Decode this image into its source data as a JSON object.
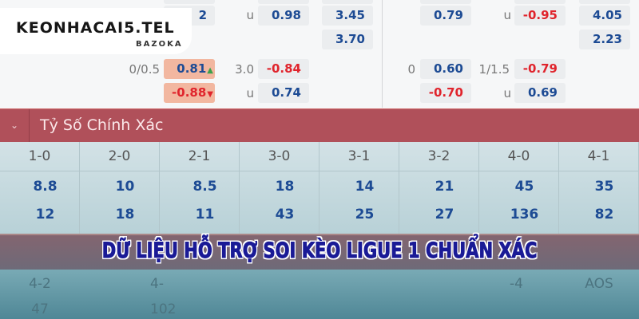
{
  "odds_top": {
    "row_a": {
      "left_home": "2",
      "left_ou_label": "u",
      "left_ou": "0.98",
      "left_1x2": "3.45",
      "right_ah": "0.79",
      "right_ou_label": "u",
      "right_ou": "-0.95",
      "right_1x2": "4.05"
    },
    "row_b": {
      "left_1x2": "3.70",
      "right_1x2": "2.23"
    },
    "row_c": {
      "left_hcp": "0/0.5",
      "left_ah": "0.81",
      "left_ah_trend": "▲",
      "left_line": "3.0",
      "left_ou": "-0.84",
      "right_hcp": "0",
      "right_ah": "0.60",
      "right_line": "1/1.5",
      "right_ou": "-0.79"
    },
    "row_d": {
      "left_ah": "-0.88",
      "left_ah_trend": "▼",
      "left_ou_label": "u",
      "left_ou": "0.74",
      "right_ah": "-0.70",
      "right_ou_label": "u",
      "right_ou": "0.69"
    }
  },
  "logo": {
    "main": "KEONHACAI5.TEL",
    "sub": "BAZOKA"
  },
  "section": {
    "title": "Tỷ Số Chính Xác",
    "toggle_icon": "chevron-down-icon",
    "color": "#b0505a"
  },
  "correct_score": [
    {
      "score": "1-0",
      "home": "8.8",
      "away": "12"
    },
    {
      "score": "2-0",
      "home": "10",
      "away": "18"
    },
    {
      "score": "2-1",
      "home": "8.5",
      "away": "11"
    },
    {
      "score": "3-0",
      "home": "18",
      "away": "43"
    },
    {
      "score": "3-1",
      "home": "14",
      "away": "25"
    },
    {
      "score": "3-2",
      "home": "21",
      "away": "27"
    },
    {
      "score": "4-0",
      "home": "45",
      "away": "136"
    },
    {
      "score": "4-1",
      "home": "35",
      "away": "82"
    }
  ],
  "faded_row": {
    "c1": "4-2",
    "c2": "4-",
    "c7": "-4",
    "c8": "AOS",
    "v1": "47",
    "v2": "102"
  },
  "banner": {
    "text": "DỮ LIỆU HỖ TRỢ SOI KÈO LIGUE 1 CHUẨN XÁC"
  }
}
